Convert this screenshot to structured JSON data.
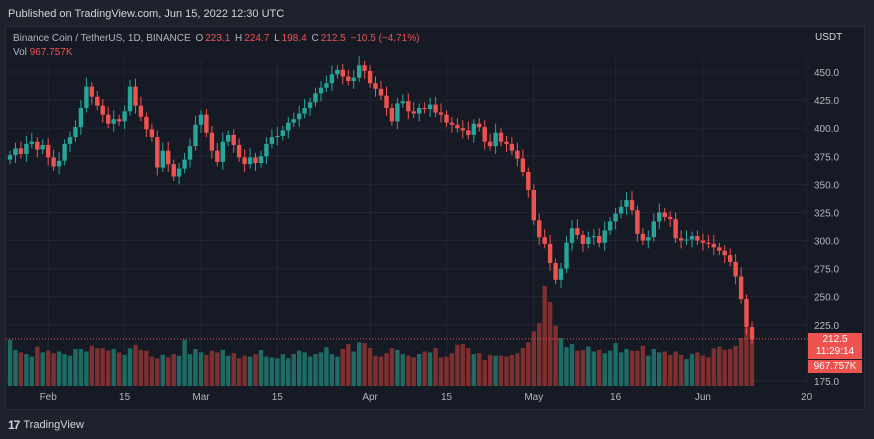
{
  "header": {
    "published": "Published on TradingView.com, Jun 15, 2022 12:30 UTC"
  },
  "legend": {
    "symbol": "Binance Coin / TetherUS, 1D, BINANCE",
    "o_label": "O",
    "o_value": "223.1",
    "h_label": "H",
    "h_value": "224.7",
    "l_label": "L",
    "l_value": "198.4",
    "c_label": "C",
    "c_value": "212.5",
    "change": "−10.5 (−4.71%)",
    "vol_label": "Vol",
    "vol_value": "967.757K"
  },
  "currency": "USDT",
  "last_price": {
    "price": "212.5",
    "countdown": "11:29:14",
    "volume": "967.757K"
  },
  "footer": {
    "brand": "TradingView",
    "logo_text": "17"
  },
  "colors": {
    "up": "#26a69a",
    "down": "#ef5350",
    "up_vol": "#1e6b64",
    "down_vol": "#7e3030",
    "background": "#161a25",
    "text": "#b2b5be"
  },
  "chart_data": {
    "type": "candlestick",
    "y_ticks": [
      "450.0",
      "425.0",
      "400.0",
      "375.0",
      "350.0",
      "325.0",
      "300.0",
      "275.0",
      "250.0",
      "225.0",
      "175.0"
    ],
    "y_tick_values": [
      450,
      425,
      400,
      375,
      350,
      325,
      300,
      275,
      250,
      225,
      175
    ],
    "ylim": [
      170,
      470
    ],
    "x_ticks": [
      "Feb",
      "15",
      "Mar",
      "15",
      "Apr",
      "15",
      "May",
      "16",
      "Jun",
      "20"
    ],
    "x_tick_days": [
      32,
      46,
      60,
      74,
      91,
      105,
      121,
      136,
      152,
      171
    ],
    "start_day": 25,
    "last_price": 212.5,
    "closes": [
      376,
      382,
      377,
      386,
      388,
      381,
      385,
      374,
      366,
      371,
      386,
      392,
      401,
      418,
      437,
      428,
      420,
      412,
      404,
      408,
      406,
      415,
      437,
      420,
      410,
      399,
      392,
      365,
      380,
      368,
      357,
      364,
      372,
      384,
      403,
      412,
      396,
      380,
      370,
      388,
      394,
      385,
      374,
      368,
      374,
      369,
      375,
      386,
      392,
      393,
      398,
      405,
      408,
      413,
      418,
      423,
      431,
      436,
      440,
      448,
      452,
      446,
      442,
      445,
      456,
      451,
      440,
      435,
      429,
      418,
      406,
      422,
      424,
      415,
      413,
      418,
      417,
      421,
      414,
      412,
      405,
      403,
      400,
      398,
      394,
      404,
      401,
      388,
      384,
      396,
      388,
      386,
      380,
      373,
      361,
      345,
      318,
      303,
      297,
      280,
      265,
      275,
      298,
      311,
      305,
      297,
      303,
      304,
      298,
      309,
      317,
      324,
      330,
      336,
      327,
      306,
      300,
      303,
      317,
      325,
      321,
      319,
      302,
      300,
      301,
      304,
      300,
      298,
      297,
      294,
      291,
      287,
      281,
      268,
      248,
      223,
      212
    ],
    "volumes": [
      55,
      43,
      40,
      38,
      35,
      47,
      40,
      42,
      39,
      41,
      38,
      36,
      44,
      44,
      41,
      48,
      45,
      45,
      42,
      44,
      40,
      37,
      45,
      49,
      43,
      42,
      35,
      33,
      37,
      34,
      38,
      36,
      55,
      38,
      44,
      40,
      37,
      42,
      40,
      43,
      36,
      39,
      33,
      36,
      35,
      38,
      43,
      35,
      34,
      33,
      38,
      33,
      38,
      42,
      40,
      35,
      38,
      40,
      46,
      38,
      35,
      44,
      50,
      41,
      52,
      51,
      45,
      36,
      35,
      39,
      45,
      43,
      38,
      36,
      34,
      38,
      41,
      40,
      45,
      34,
      35,
      39,
      49,
      50,
      45,
      38,
      39,
      31,
      37,
      36,
      36,
      35,
      37,
      39,
      45,
      52,
      65,
      75,
      119,
      100,
      72,
      57,
      46,
      50,
      42,
      43,
      47,
      41,
      43,
      39,
      42,
      51,
      40,
      44,
      42,
      42,
      48,
      36,
      44,
      40,
      41,
      37,
      41,
      37,
      32,
      38,
      40,
      36,
      34,
      45,
      47,
      43,
      44,
      48,
      57,
      69,
      62
    ],
    "series": [
      {
        "name": "Vol",
        "values": "volumes"
      }
    ]
  }
}
